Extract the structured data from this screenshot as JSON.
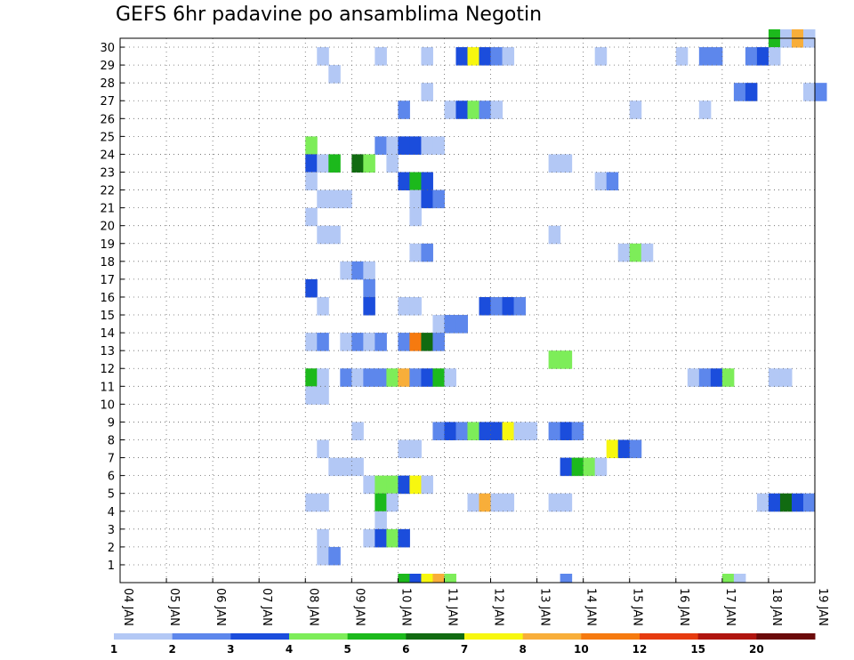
{
  "chart_data": {
    "type": "heatmap",
    "title": "GEFS 6hr padavine po ansamblima Negotin",
    "xlabel": "",
    "ylabel": "",
    "x_tick_labels": [
      "04 JAN",
      "05 JAN",
      "06 JAN",
      "07 JAN",
      "08 JAN",
      "09 JAN",
      "10 JAN",
      "11 JAN",
      "12 JAN",
      "13 JAN",
      "14 JAN",
      "15 JAN",
      "16 JAN",
      "17 JAN",
      "18 JAN",
      "19 JAN"
    ],
    "y_tick_labels": [
      "1",
      "2",
      "3",
      "4",
      "5",
      "6",
      "7",
      "8",
      "9",
      "10",
      "11",
      "12",
      "13",
      "14",
      "15",
      "16",
      "17",
      "18",
      "19",
      "20",
      "21",
      "22",
      "23",
      "24",
      "25",
      "26",
      "27",
      "28",
      "29",
      "30"
    ],
    "grid": "dotted",
    "legend": {
      "position": "bottom",
      "tick_labels": [
        "1",
        "2",
        "3",
        "4",
        "5",
        "6",
        "7",
        "8",
        "10",
        "12",
        "15",
        "20"
      ],
      "colors": [
        "#b3c8f5",
        "#5d87ec",
        "#1b4ddc",
        "#7ded59",
        "#1cb91c",
        "#116b11",
        "#f7f70f",
        "#f8ae3a",
        "#f67a0f",
        "#e63b0f",
        "#b0150f",
        "#6b0a0a"
      ]
    },
    "colors": {
      "c1": "#b3c8f5",
      "c2": "#5d87ec",
      "c3": "#1b4ddc",
      "c4": "#7ded59",
      "c5": "#1cb91c",
      "c6": "#116b11",
      "c7": "#f7f70f",
      "c8": "#f8ae3a",
      "c10": "#f67a0f"
    },
    "cells": [
      {
        "y": 30,
        "x": [
          [
            56,
            5
          ],
          [
            57,
            1
          ],
          [
            58,
            8
          ],
          [
            59,
            1
          ]
        ]
      },
      {
        "y": 29,
        "x": [
          [
            17,
            1
          ],
          [
            22,
            1
          ],
          [
            26,
            1
          ],
          [
            29,
            3
          ],
          [
            30,
            7
          ],
          [
            31,
            3
          ],
          [
            32,
            2
          ],
          [
            33,
            1
          ],
          [
            41,
            1
          ],
          [
            48,
            1
          ],
          [
            50,
            2
          ],
          [
            51,
            2
          ],
          [
            54,
            2
          ],
          [
            55,
            3
          ],
          [
            56,
            1
          ]
        ]
      },
      {
        "y": 28,
        "x": [
          [
            18,
            1
          ]
        ]
      },
      {
        "y": 27,
        "x": [
          [
            26,
            1
          ],
          [
            53,
            2
          ],
          [
            54,
            3
          ],
          [
            59,
            1
          ],
          [
            60,
            2
          ]
        ]
      },
      {
        "y": 26,
        "x": [
          [
            24,
            2
          ],
          [
            28,
            1
          ],
          [
            29,
            3
          ],
          [
            30,
            4
          ],
          [
            31,
            2
          ],
          [
            32,
            1
          ],
          [
            44,
            1
          ],
          [
            50,
            1
          ]
        ]
      },
      {
        "y": 24,
        "x": [
          [
            16,
            4
          ],
          [
            22,
            2
          ],
          [
            23,
            1
          ],
          [
            24,
            3
          ],
          [
            25,
            3
          ],
          [
            26,
            1
          ],
          [
            27,
            1
          ]
        ]
      },
      {
        "y": 23,
        "x": [
          [
            16,
            3
          ],
          [
            17,
            1
          ],
          [
            18,
            5
          ],
          [
            20,
            6
          ],
          [
            21,
            4
          ],
          [
            23,
            1
          ],
          [
            37,
            1
          ],
          [
            38,
            1
          ]
        ]
      },
      {
        "y": 22,
        "x": [
          [
            16,
            1
          ],
          [
            24,
            3
          ],
          [
            25,
            5
          ],
          [
            26,
            3
          ],
          [
            41,
            1
          ],
          [
            42,
            2
          ]
        ]
      },
      {
        "y": 21,
        "x": [
          [
            17,
            1
          ],
          [
            18,
            1
          ],
          [
            19,
            1
          ],
          [
            25,
            1
          ],
          [
            26,
            3
          ],
          [
            27,
            2
          ]
        ]
      },
      {
        "y": 20,
        "x": [
          [
            16,
            1
          ],
          [
            25,
            1
          ]
        ]
      },
      {
        "y": 19,
        "x": [
          [
            17,
            1
          ],
          [
            18,
            1
          ],
          [
            37,
            1
          ]
        ]
      },
      {
        "y": 18,
        "x": [
          [
            25,
            1
          ],
          [
            26,
            2
          ],
          [
            43,
            1
          ],
          [
            44,
            4
          ],
          [
            45,
            1
          ]
        ]
      },
      {
        "y": 17,
        "x": [
          [
            19,
            1
          ],
          [
            20,
            2
          ],
          [
            21,
            1
          ]
        ]
      },
      {
        "y": 16,
        "x": [
          [
            16,
            3
          ],
          [
            21,
            2
          ]
        ]
      },
      {
        "y": 15,
        "x": [
          [
            17,
            1
          ],
          [
            21,
            3
          ],
          [
            24,
            1
          ],
          [
            25,
            1
          ],
          [
            31,
            3
          ],
          [
            32,
            2
          ],
          [
            33,
            3
          ],
          [
            34,
            2
          ]
        ]
      },
      {
        "y": 14,
        "x": [
          [
            27,
            1
          ],
          [
            28,
            2
          ],
          [
            29,
            2
          ]
        ]
      },
      {
        "y": 13,
        "x": [
          [
            16,
            1
          ],
          [
            17,
            2
          ],
          [
            19,
            1
          ],
          [
            20,
            2
          ],
          [
            21,
            1
          ],
          [
            22,
            2
          ],
          [
            24,
            2
          ],
          [
            25,
            10
          ],
          [
            26,
            6
          ],
          [
            27,
            2
          ]
        ]
      },
      {
        "y": 12,
        "x": [
          [
            37,
            4
          ],
          [
            38,
            4
          ]
        ]
      },
      {
        "y": 11,
        "x": [
          [
            16,
            5
          ],
          [
            17,
            1
          ],
          [
            19,
            2
          ],
          [
            20,
            1
          ],
          [
            21,
            2
          ],
          [
            22,
            2
          ],
          [
            23,
            4
          ],
          [
            24,
            8
          ],
          [
            25,
            2
          ],
          [
            26,
            3
          ],
          [
            27,
            5
          ],
          [
            28,
            1
          ],
          [
            49,
            1
          ],
          [
            50,
            2
          ],
          [
            51,
            3
          ],
          [
            52,
            4
          ],
          [
            56,
            1
          ],
          [
            57,
            1
          ]
        ]
      },
      {
        "y": 10,
        "x": [
          [
            16,
            1
          ],
          [
            17,
            1
          ]
        ]
      },
      {
        "y": 8,
        "x": [
          [
            20,
            1
          ],
          [
            27,
            2
          ],
          [
            28,
            3
          ],
          [
            29,
            2
          ],
          [
            30,
            4
          ],
          [
            31,
            3
          ],
          [
            32,
            3
          ],
          [
            33,
            7
          ],
          [
            34,
            1
          ],
          [
            35,
            1
          ],
          [
            37,
            2
          ],
          [
            38,
            3
          ],
          [
            39,
            2
          ]
        ]
      },
      {
        "y": 7,
        "x": [
          [
            17,
            1
          ],
          [
            24,
            1
          ],
          [
            25,
            1
          ],
          [
            42,
            7
          ],
          [
            43,
            3
          ],
          [
            44,
            2
          ]
        ]
      },
      {
        "y": 6,
        "x": [
          [
            18,
            1
          ],
          [
            19,
            1
          ],
          [
            20,
            1
          ],
          [
            38,
            3
          ],
          [
            39,
            5
          ],
          [
            40,
            4
          ],
          [
            41,
            1
          ]
        ]
      },
      {
        "y": 5,
        "x": [
          [
            21,
            1
          ],
          [
            22,
            4
          ],
          [
            23,
            4
          ],
          [
            24,
            3
          ],
          [
            25,
            7
          ],
          [
            26,
            1
          ]
        ]
      },
      {
        "y": 4,
        "x": [
          [
            16,
            1
          ],
          [
            17,
            1
          ],
          [
            22,
            5
          ],
          [
            23,
            1
          ],
          [
            30,
            1
          ],
          [
            31,
            8
          ],
          [
            32,
            1
          ],
          [
            33,
            1
          ],
          [
            37,
            1
          ],
          [
            38,
            1
          ],
          [
            55,
            1
          ],
          [
            56,
            3
          ],
          [
            57,
            6
          ],
          [
            58,
            3
          ],
          [
            59,
            2
          ]
        ]
      },
      {
        "y": 3,
        "x": [
          [
            22,
            1
          ]
        ]
      },
      {
        "y": 2,
        "x": [
          [
            17,
            1
          ],
          [
            21,
            1
          ],
          [
            22,
            3
          ],
          [
            23,
            4
          ],
          [
            24,
            3
          ]
        ]
      },
      {
        "y": 1,
        "x": [
          [
            17,
            1
          ],
          [
            18,
            2
          ]
        ]
      },
      {
        "y": 0,
        "x": [
          [
            24,
            5
          ],
          [
            25,
            3
          ],
          [
            26,
            7
          ],
          [
            27,
            8
          ],
          [
            28,
            4
          ],
          [
            38,
            2
          ],
          [
            52,
            4
          ],
          [
            53,
            1
          ]
        ]
      }
    ]
  }
}
